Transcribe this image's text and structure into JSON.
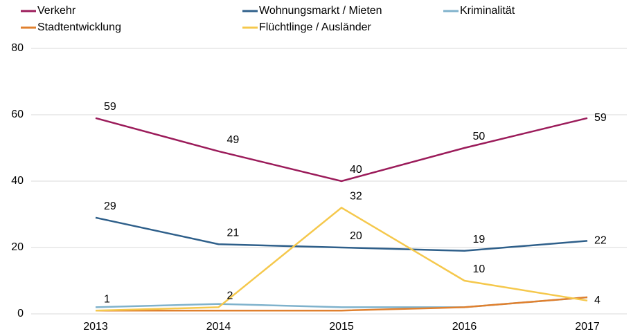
{
  "chart_data": {
    "type": "line",
    "x": [
      "2013",
      "2014",
      "2015",
      "2016",
      "2017"
    ],
    "series": [
      {
        "name": "Verkehr",
        "color": "#9b1b5a",
        "values": [
          59,
          49,
          40,
          50,
          59
        ],
        "data_labels": true
      },
      {
        "name": "Wohnungsmarkt / Mieten",
        "color": "#2e5f8a",
        "values": [
          29,
          21,
          20,
          19,
          22
        ],
        "data_labels": true
      },
      {
        "name": "Kriminalität",
        "color": "#7fb2cc",
        "values": [
          2,
          3,
          2,
          2,
          5
        ],
        "data_labels": false
      },
      {
        "name": "Stadtentwicklung",
        "color": "#e0802e",
        "values": [
          1,
          1,
          1,
          2,
          5
        ],
        "data_labels": false
      },
      {
        "name": "Flüchtlinge / Ausländer",
        "color": "#f5c84c",
        "values": [
          1,
          2,
          32,
          10,
          4
        ],
        "data_labels": true
      }
    ],
    "ylim": [
      0,
      80
    ],
    "yticks": [
      0,
      20,
      40,
      60,
      80
    ],
    "grid": true,
    "legend": "top"
  }
}
